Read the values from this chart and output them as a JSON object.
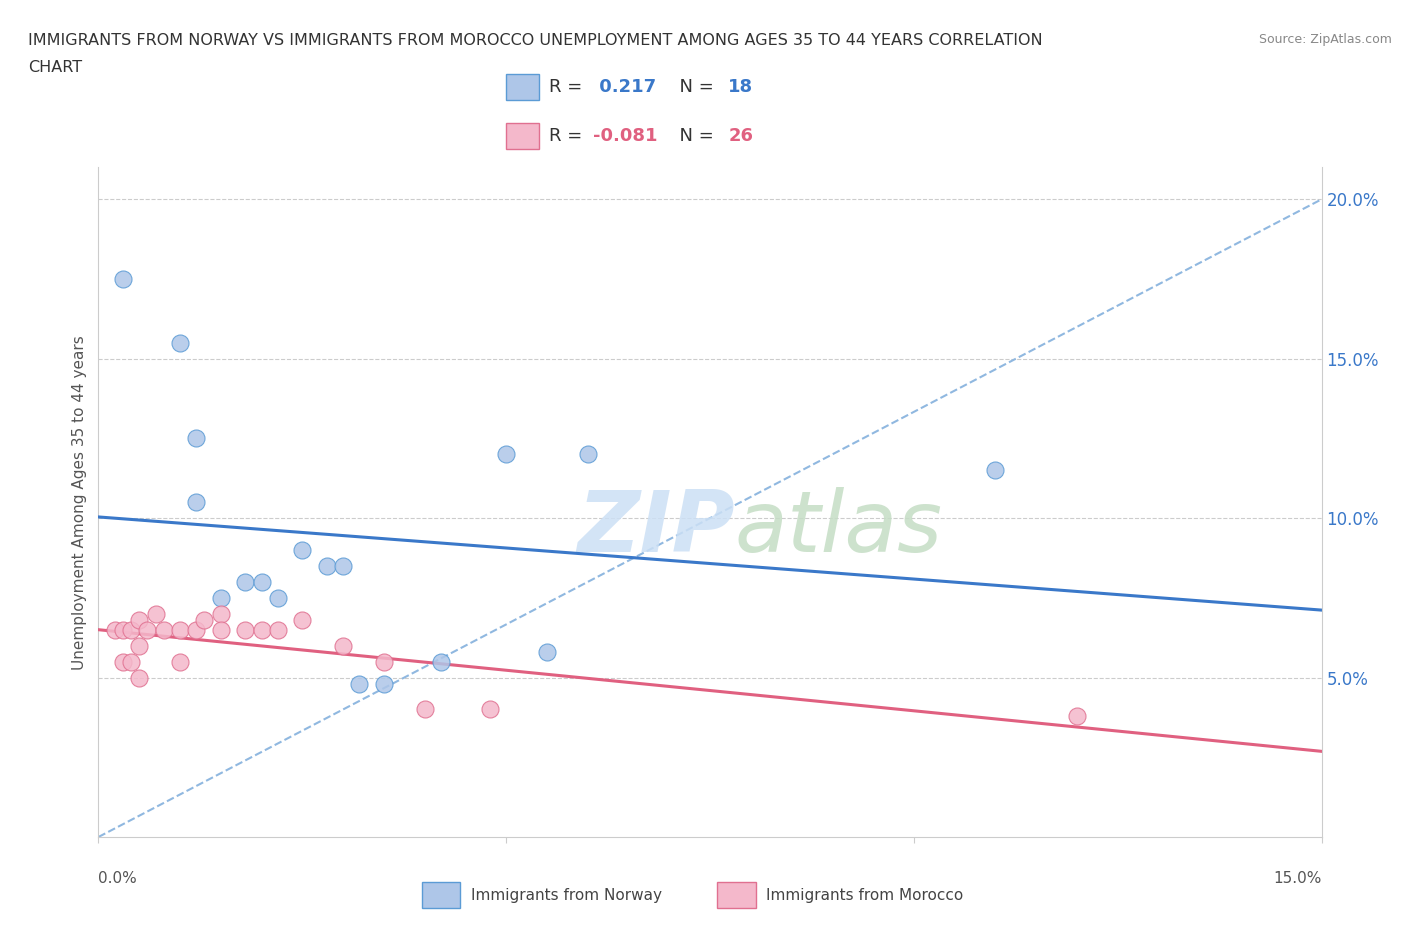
{
  "title_line1": "IMMIGRANTS FROM NORWAY VS IMMIGRANTS FROM MOROCCO UNEMPLOYMENT AMONG AGES 35 TO 44 YEARS CORRELATION",
  "title_line2": "CHART",
  "source": "Source: ZipAtlas.com",
  "ylabel_label": "Unemployment Among Ages 35 to 44 years",
  "xlim": [
    0.0,
    0.15
  ],
  "ylim": [
    0.0,
    0.21
  ],
  "norway_color": "#aec6e8",
  "norway_edge_color": "#5b9bd5",
  "morocco_color": "#f4b8cb",
  "morocco_edge_color": "#e07090",
  "norway_line_color": "#3a78c9",
  "morocco_line_color": "#e06080",
  "dashed_line_color": "#90b8e0",
  "grid_line_color": "#cccccc",
  "norway_scatter_x": [
    0.003,
    0.01,
    0.012,
    0.015,
    0.018,
    0.02,
    0.022,
    0.025,
    0.028,
    0.03,
    0.032,
    0.035,
    0.042,
    0.05,
    0.055,
    0.06,
    0.11,
    0.012
  ],
  "norway_scatter_y": [
    0.175,
    0.155,
    0.125,
    0.075,
    0.08,
    0.08,
    0.075,
    0.09,
    0.085,
    0.085,
    0.048,
    0.048,
    0.055,
    0.12,
    0.058,
    0.12,
    0.115,
    0.105
  ],
  "morocco_scatter_x": [
    0.002,
    0.003,
    0.003,
    0.004,
    0.004,
    0.005,
    0.005,
    0.005,
    0.006,
    0.007,
    0.008,
    0.01,
    0.01,
    0.012,
    0.013,
    0.015,
    0.015,
    0.018,
    0.02,
    0.022,
    0.025,
    0.03,
    0.035,
    0.04,
    0.048,
    0.12
  ],
  "morocco_scatter_y": [
    0.065,
    0.065,
    0.055,
    0.065,
    0.055,
    0.068,
    0.06,
    0.05,
    0.065,
    0.07,
    0.065,
    0.065,
    0.055,
    0.065,
    0.068,
    0.07,
    0.065,
    0.065,
    0.065,
    0.065,
    0.068,
    0.06,
    0.055,
    0.04,
    0.04,
    0.038
  ],
  "norway_R": 0.217,
  "norway_N": 18,
  "morocco_R": -0.081,
  "morocco_N": 26,
  "legend_norway": "Immigrants from Norway",
  "legend_morocco": "Immigrants from Morocco",
  "right_tick_color": "#3a78c9",
  "tick_label_color": "#555555"
}
